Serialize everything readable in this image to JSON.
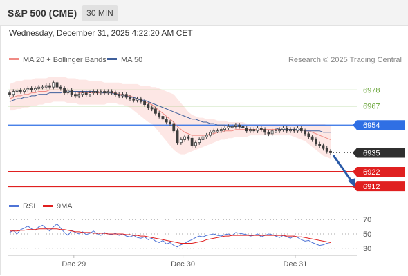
{
  "header": {
    "title": "S&P 500 (CME)",
    "timeframe": "30 MIN",
    "datetime": "Wednesday, December 31, 2025 4:22:20 AM CET"
  },
  "legend": {
    "ma20_label": "MA 20 + Bollinger Bands",
    "ma50_label": "MA 50",
    "credit": "Research © 2025 Trading Central",
    "rsi_label": "RSI",
    "rsi_ma_label": "9MA"
  },
  "colors": {
    "ma20": "#f08a84",
    "ma50": "#3f5f9b",
    "bollinger_fill": "#fde3e1",
    "candle": "#3d3d3d",
    "resistance": "#8fc26a",
    "pivot": "#2f6fe4",
    "support": "#e02020",
    "current": "#2f2f2f",
    "arrow": "#2a5aa8",
    "rsi": "#4f74d6",
    "rsi_ma": "#e02020"
  },
  "chart_data": {
    "type": "candlestick",
    "price_ylim": [
      6905,
      6990
    ],
    "x_labels": [
      "Dec 29",
      "Dec 30",
      "Dec 31"
    ],
    "levels": [
      {
        "value": 6978,
        "label": "6978",
        "kind": "resistance"
      },
      {
        "value": 6967,
        "label": "6967",
        "kind": "resistance"
      },
      {
        "value": 6954,
        "label": "6954",
        "kind": "pivot"
      },
      {
        "value": 6935,
        "label": "6935",
        "kind": "current"
      },
      {
        "value": 6922,
        "label": "6922",
        "kind": "support"
      },
      {
        "value": 6912,
        "label": "6912",
        "kind": "support"
      }
    ],
    "close_series": [
      6975,
      6977,
      6978,
      6977,
      6978,
      6979,
      6978,
      6979,
      6980,
      6980,
      6981,
      6980,
      6983,
      6980,
      6979,
      6976,
      6978,
      6975,
      6974,
      6975,
      6976,
      6975,
      6976,
      6977,
      6976,
      6977,
      6976,
      6977,
      6976,
      6975,
      6974,
      6975,
      6973,
      6972,
      6971,
      6972,
      6970,
      6968,
      6966,
      6965,
      6962,
      6960,
      6958,
      6956,
      6955,
      6950,
      6942,
      6944,
      6946,
      6945,
      6940,
      6942,
      6944,
      6946,
      6947,
      6949,
      6950,
      6950,
      6951,
      6952,
      6953,
      6953,
      6954,
      6953,
      6952,
      6950,
      6951,
      6950,
      6952,
      6951,
      6949,
      6948,
      6950,
      6950,
      6951,
      6952,
      6950,
      6951,
      6950,
      6952,
      6950,
      6948,
      6946,
      6944,
      6941,
      6940,
      6938,
      6936,
      6935
    ],
    "ma20": [
      6972,
      6973,
      6974,
      6974,
      6975,
      6975,
      6976,
      6976,
      6977,
      6977,
      6977,
      6978,
      6978,
      6978,
      6978,
      6978,
      6977,
      6977,
      6977,
      6976,
      6976,
      6976,
      6976,
      6976,
      6976,
      6976,
      6976,
      6976,
      6976,
      6976,
      6975,
      6975,
      6974,
      6974,
      6973,
      6972,
      6971,
      6970,
      6969,
      6968,
      6966,
      6964,
      6962,
      6960,
      6958,
      6956,
      6953,
      6951,
      6949,
      6948,
      6947,
      6947,
      6947,
      6947,
      6947,
      6948,
      6948,
      6949,
      6949,
      6950,
      6950,
      6950,
      6951,
      6951,
      6951,
      6951,
      6951,
      6951,
      6951,
      6951,
      6951,
      6951,
      6951,
      6951,
      6951,
      6951,
      6951,
      6951,
      6951,
      6951,
      6951,
      6950,
      6950,
      6949,
      6948,
      6947,
      6946,
      6945,
      6944
    ],
    "ma50": [
      6970,
      6971,
      6972,
      6972,
      6973,
      6973,
      6974,
      6974,
      6975,
      6975,
      6975,
      6976,
      6976,
      6976,
      6976,
      6977,
      6977,
      6977,
      6977,
      6977,
      6977,
      6977,
      6977,
      6977,
      6977,
      6976,
      6976,
      6976,
      6976,
      6975,
      6975,
      6974,
      6974,
      6973,
      6973,
      6972,
      6971,
      6971,
      6970,
      6969,
      6968,
      6967,
      6966,
      6965,
      6964,
      6963,
      6962,
      6961,
      6960,
      6959,
      6958,
      6958,
      6957,
      6956,
      6956,
      6955,
      6955,
      6954,
      6954,
      6954,
      6953,
      6953,
      6953,
      6953,
      6952,
      6952,
      6952,
      6952,
      6952,
      6952,
      6952,
      6952,
      6952,
      6952,
      6951,
      6951,
      6951,
      6951,
      6951,
      6951,
      6951,
      6950,
      6950,
      6950,
      6950,
      6950,
      6949,
      6949,
      6949
    ],
    "bb_upper": [
      6982,
      6983,
      6984,
      6984,
      6985,
      6985,
      6985,
      6986,
      6986,
      6986,
      6986,
      6987,
      6987,
      6987,
      6987,
      6987,
      6986,
      6986,
      6986,
      6985,
      6985,
      6985,
      6984,
      6984,
      6984,
      6984,
      6983,
      6983,
      6983,
      6983,
      6983,
      6982,
      6982,
      6982,
      6982,
      6982,
      6981,
      6981,
      6981,
      6980,
      6980,
      6979,
      6978,
      6977,
      6976,
      6975,
      6972,
      6969,
      6966,
      6963,
      6961,
      6960,
      6959,
      6959,
      6958,
      6958,
      6958,
      6957,
      6957,
      6957,
      6956,
      6956,
      6956,
      6956,
      6956,
      6955,
      6955,
      6955,
      6955,
      6955,
      6955,
      6955,
      6955,
      6955,
      6955,
      6955,
      6955,
      6955,
      6955,
      6955,
      6955,
      6955,
      6955,
      6955,
      6955,
      6955,
      6955,
      6954,
      6954
    ],
    "bb_lower": [
      6964,
      6964,
      6965,
      6965,
      6966,
      6966,
      6967,
      6967,
      6968,
      6968,
      6969,
      6969,
      6970,
      6970,
      6970,
      6970,
      6969,
      6969,
      6969,
      6968,
      6968,
      6968,
      6968,
      6968,
      6968,
      6968,
      6968,
      6969,
      6969,
      6969,
      6968,
      6968,
      6967,
      6966,
      6964,
      6962,
      6960,
      6958,
      6956,
      6955,
      6952,
      6949,
      6946,
      6943,
      6940,
      6937,
      6935,
      6934,
      6934,
      6935,
      6936,
      6937,
      6938,
      6939,
      6940,
      6941,
      6942,
      6943,
      6944,
      6944,
      6945,
      6945,
      6946,
      6946,
      6946,
      6946,
      6947,
      6947,
      6947,
      6947,
      6947,
      6947,
      6947,
      6947,
      6947,
      6947,
      6947,
      6947,
      6946,
      6945,
      6944,
      6943,
      6941,
      6939,
      6937,
      6935,
      6933,
      6932,
      6931
    ],
    "rsi": {
      "ylim": [
        25,
        75
      ],
      "ticks": [
        "70",
        "50",
        "30"
      ],
      "values": [
        52,
        55,
        50,
        56,
        58,
        61,
        57,
        55,
        60,
        62,
        58,
        54,
        60,
        64,
        58,
        52,
        48,
        55,
        52,
        50,
        53,
        49,
        51,
        54,
        50,
        48,
        52,
        50,
        49,
        51,
        48,
        50,
        47,
        46,
        48,
        45,
        44,
        46,
        42,
        44,
        40,
        38,
        41,
        36,
        38,
        34,
        32,
        35,
        37,
        40,
        42,
        45,
        47,
        46,
        48,
        49,
        50,
        48,
        47,
        49,
        50,
        48,
        52,
        51,
        50,
        49,
        47,
        48,
        50,
        46,
        48,
        50,
        49,
        47,
        45,
        48,
        46,
        44,
        47,
        45,
        42,
        40,
        41,
        38,
        36,
        34,
        35,
        37,
        36
      ],
      "ma9": [
        54,
        54,
        54,
        55,
        55,
        56,
        56,
        56,
        57,
        57,
        57,
        57,
        57,
        57,
        56,
        56,
        55,
        54,
        53,
        53,
        52,
        52,
        52,
        51,
        51,
        51,
        51,
        50,
        50,
        50,
        50,
        50,
        49,
        49,
        48,
        48,
        47,
        47,
        46,
        45,
        44,
        43,
        42,
        41,
        40,
        39,
        38,
        37,
        37,
        37,
        37,
        38,
        39,
        40,
        42,
        43,
        44,
        45,
        46,
        47,
        47,
        48,
        48,
        48,
        48,
        48,
        48,
        48,
        48,
        48,
        48,
        48,
        48,
        48,
        48,
        48,
        47,
        47,
        47,
        46,
        46,
        45,
        44,
        43,
        42,
        41,
        40,
        39,
        38
      ]
    }
  }
}
